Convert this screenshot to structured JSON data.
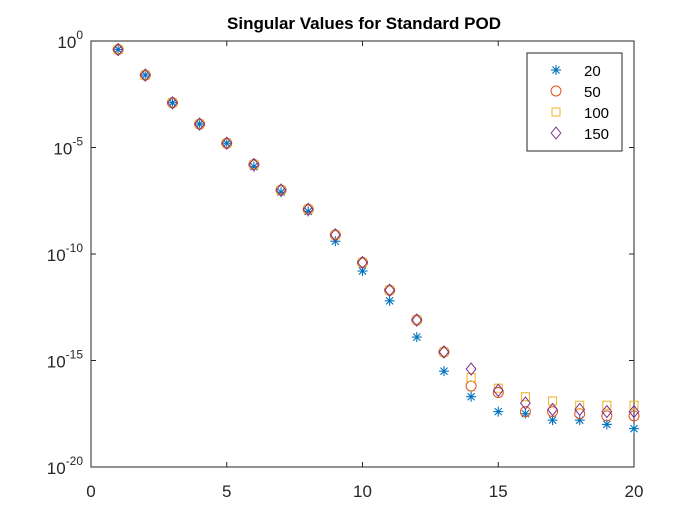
{
  "chart_data": {
    "type": "scatter",
    "title": "Singular Values for Standard POD",
    "xlabel": "",
    "ylabel": "",
    "xlim": [
      0,
      20
    ],
    "ylim_exp": [
      -20,
      0
    ],
    "yscale": "log",
    "x_ticks": [
      "0",
      "5",
      "10",
      "15",
      "20"
    ],
    "y_ticks": [
      {
        "base": "10",
        "exp": "0"
      },
      {
        "base": "10",
        "exp": "-5"
      },
      {
        "base": "10",
        "exp": "-10"
      },
      {
        "base": "10",
        "exp": "-15"
      },
      {
        "base": "10",
        "exp": "-20"
      }
    ],
    "legend_position": "top-right",
    "series": [
      {
        "name": "20",
        "marker": "asterisk",
        "color": "#0072BD",
        "x": [
          1,
          2,
          3,
          4,
          5,
          6,
          7,
          8,
          9,
          10,
          11,
          12,
          13,
          14,
          15,
          16,
          17,
          18,
          19,
          20
        ],
        "log10_values": [
          -0.4,
          -1.6,
          -2.9,
          -3.9,
          -4.8,
          -5.9,
          -7.1,
          -8.0,
          -9.4,
          -10.8,
          -12.2,
          -13.9,
          -15.5,
          -16.7,
          -17.4,
          -17.5,
          -17.8,
          -17.8,
          -18.0,
          -18.2
        ]
      },
      {
        "name": "50",
        "marker": "circle",
        "color": "#D95319",
        "x": [
          1,
          2,
          3,
          4,
          5,
          6,
          7,
          8,
          9,
          10,
          11,
          12,
          13,
          14,
          15,
          16,
          17,
          18,
          19,
          20
        ],
        "log10_values": [
          -0.4,
          -1.6,
          -2.9,
          -3.9,
          -4.8,
          -5.8,
          -7.0,
          -7.9,
          -9.1,
          -10.4,
          -11.7,
          -13.1,
          -14.6,
          -16.2,
          -16.5,
          -17.4,
          -17.4,
          -17.5,
          -17.6,
          -17.6
        ]
      },
      {
        "name": "100",
        "marker": "square",
        "color": "#EDB120",
        "x": [
          1,
          2,
          3,
          4,
          5,
          6,
          7,
          8,
          9,
          10,
          11,
          12,
          13,
          14,
          15,
          16,
          17,
          18,
          19,
          20
        ],
        "log10_values": [
          -0.4,
          -1.6,
          -2.9,
          -3.9,
          -4.8,
          -5.8,
          -7.0,
          -7.9,
          -9.1,
          -10.4,
          -11.7,
          -13.1,
          -14.6,
          -15.8,
          -16.3,
          -16.7,
          -16.9,
          -17.1,
          -17.1,
          -17.1
        ]
      },
      {
        "name": "150",
        "marker": "diamond",
        "color": "#7E2F8E",
        "x": [
          1,
          2,
          3,
          4,
          5,
          6,
          7,
          8,
          9,
          10,
          11,
          12,
          13,
          14,
          15,
          16,
          17,
          18,
          19,
          20
        ],
        "log10_values": [
          -0.4,
          -1.6,
          -2.9,
          -3.9,
          -4.8,
          -5.8,
          -7.0,
          -7.9,
          -9.1,
          -10.4,
          -11.7,
          -13.1,
          -14.6,
          -15.4,
          -16.4,
          -17.0,
          -17.3,
          -17.3,
          -17.4,
          -17.4
        ]
      }
    ]
  }
}
